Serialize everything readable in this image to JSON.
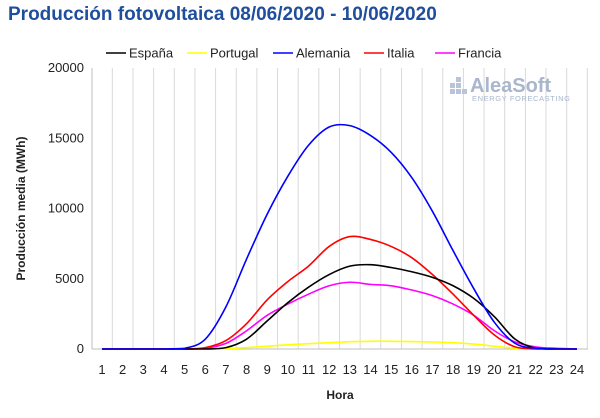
{
  "chart_data": {
    "type": "line",
    "title": "Producción fotovoltaica 08/06/2020 - 10/06/2020",
    "xlabel": "Hora",
    "ylabel": "Producción media (MWh)",
    "ylim": [
      0,
      20000
    ],
    "yticks": [
      0,
      5000,
      10000,
      15000,
      20000
    ],
    "ytick_labels": [
      "0",
      "5000",
      "10000",
      "15000",
      "20000"
    ],
    "grid": "vertical",
    "legend_position": "top",
    "x": [
      1,
      2,
      3,
      4,
      5,
      6,
      7,
      8,
      9,
      10,
      11,
      12,
      13,
      14,
      15,
      16,
      17,
      18,
      19,
      20,
      21,
      22,
      23,
      24
    ],
    "x_labels": [
      "1",
      "2",
      "3",
      "4",
      "5",
      "6",
      "7",
      "8",
      "9",
      "10",
      "11",
      "12",
      "13",
      "14",
      "15",
      "16",
      "17",
      "18",
      "19",
      "20",
      "21",
      "22",
      "23",
      "24"
    ],
    "series": [
      {
        "name": "España",
        "color": "#000000",
        "values": [
          0,
          0,
          0,
          0,
          0,
          0,
          100,
          700,
          2000,
          3300,
          4400,
          5300,
          5900,
          6000,
          5800,
          5500,
          5100,
          4500,
          3600,
          2300,
          700,
          50,
          0,
          0
        ]
      },
      {
        "name": "Portugal",
        "color": "#ffff00",
        "values": [
          0,
          0,
          0,
          0,
          0,
          0,
          30,
          100,
          200,
          300,
          380,
          450,
          520,
          550,
          550,
          530,
          500,
          450,
          350,
          200,
          50,
          0,
          0,
          0
        ]
      },
      {
        "name": "Alemania",
        "color": "#0000ff",
        "values": [
          0,
          0,
          0,
          0,
          50,
          700,
          3000,
          6400,
          9600,
          12300,
          14500,
          15800,
          15900,
          15200,
          14000,
          12200,
          9800,
          7000,
          4300,
          1900,
          400,
          50,
          0,
          0
        ]
      },
      {
        "name": "Italia",
        "color": "#ff0000",
        "values": [
          0,
          0,
          0,
          0,
          0,
          100,
          600,
          1800,
          3500,
          4800,
          5900,
          7300,
          8000,
          7800,
          7300,
          6500,
          5300,
          3900,
          2400,
          1000,
          150,
          0,
          0,
          0
        ]
      },
      {
        "name": "Francia",
        "color": "#ff00ff",
        "values": [
          0,
          0,
          0,
          0,
          0,
          50,
          400,
          1300,
          2400,
          3200,
          3900,
          4500,
          4750,
          4600,
          4500,
          4200,
          3800,
          3200,
          2400,
          1300,
          500,
          150,
          50,
          0
        ]
      }
    ]
  },
  "branding": {
    "name": "AleaSoft",
    "tagline": "ENERGY FORECASTING"
  }
}
